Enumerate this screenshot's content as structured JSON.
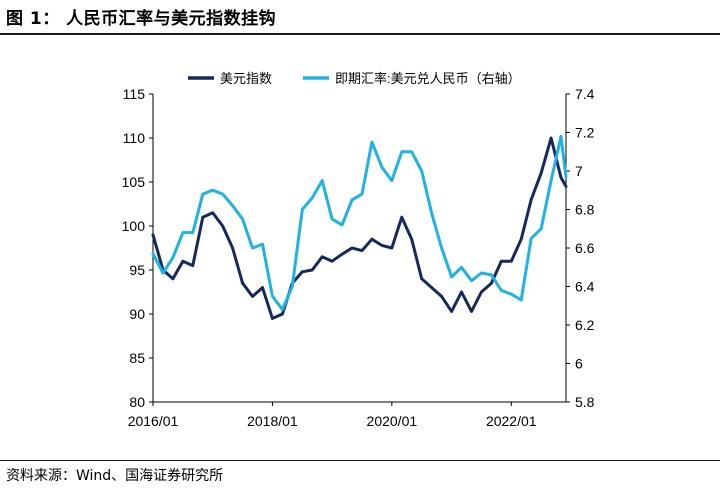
{
  "page": {
    "title": "图 1：  人民币汇率与美元指数挂钩",
    "source": "资料来源：Wind、国海证券研究所"
  },
  "colors": {
    "usd_index": "#14295f",
    "cny_rate": "#1fb2e6"
  },
  "chart_data": {
    "type": "line",
    "x_ticks": [
      "2016/01",
      "2018/01",
      "2020/01",
      "2022/01"
    ],
    "x_range": [
      "2016-01",
      "2022-12"
    ],
    "y_left": {
      "min": 80,
      "max": 115,
      "ticks": [
        "80",
        "85",
        "90",
        "95",
        "100",
        "105",
        "110",
        "115"
      ]
    },
    "y_right": {
      "min": 5.8,
      "max": 7.4,
      "ticks": [
        "5.8",
        "6",
        "6.2",
        "6.4",
        "6.6",
        "6.8",
        "7",
        "7.2",
        "7.4"
      ]
    },
    "legend_position": "top",
    "series": [
      {
        "name": "美元指数",
        "axis": "left",
        "color": "#14295f",
        "x": [
          "2016-01",
          "2016-03",
          "2016-05",
          "2016-07",
          "2016-09",
          "2016-11",
          "2017-01",
          "2017-03",
          "2017-05",
          "2017-07",
          "2017-09",
          "2017-11",
          "2018-01",
          "2018-03",
          "2018-05",
          "2018-07",
          "2018-09",
          "2018-11",
          "2019-01",
          "2019-03",
          "2019-05",
          "2019-07",
          "2019-09",
          "2019-11",
          "2020-01",
          "2020-03",
          "2020-05",
          "2020-07",
          "2020-09",
          "2020-11",
          "2021-01",
          "2021-03",
          "2021-05",
          "2021-07",
          "2021-09",
          "2021-11",
          "2022-01",
          "2022-03",
          "2022-05",
          "2022-07",
          "2022-09",
          "2022-11",
          "2022-12"
        ],
        "values": [
          99,
          95,
          94,
          96,
          95.5,
          101,
          101.5,
          100,
          97.5,
          93.5,
          92,
          93,
          89.5,
          90,
          93.5,
          94.8,
          95,
          96.5,
          96,
          96.8,
          97.5,
          97.2,
          98.5,
          97.8,
          97.5,
          101,
          98.5,
          94,
          93,
          92,
          90.3,
          92.5,
          90.3,
          92.5,
          93.5,
          96,
          96,
          98.5,
          103,
          106,
          110,
          105.5,
          104.5
        ]
      },
      {
        "name": "即期汇率:美元兑人民币（右轴）",
        "axis": "right",
        "color": "#1fb2e6",
        "x": [
          "2016-01",
          "2016-03",
          "2016-05",
          "2016-07",
          "2016-09",
          "2016-11",
          "2017-01",
          "2017-03",
          "2017-05",
          "2017-07",
          "2017-09",
          "2017-11",
          "2018-01",
          "2018-03",
          "2018-05",
          "2018-07",
          "2018-09",
          "2018-11",
          "2019-01",
          "2019-03",
          "2019-05",
          "2019-07",
          "2019-09",
          "2019-11",
          "2020-01",
          "2020-03",
          "2020-05",
          "2020-07",
          "2020-09",
          "2020-11",
          "2021-01",
          "2021-03",
          "2021-05",
          "2021-07",
          "2021-09",
          "2021-11",
          "2022-01",
          "2022-03",
          "2022-05",
          "2022-07",
          "2022-09",
          "2022-11",
          "2022-12"
        ],
        "values": [
          6.57,
          6.47,
          6.55,
          6.68,
          6.68,
          6.88,
          6.9,
          6.88,
          6.82,
          6.75,
          6.6,
          6.62,
          6.35,
          6.28,
          6.4,
          6.8,
          6.86,
          6.95,
          6.75,
          6.72,
          6.85,
          6.88,
          7.15,
          7.02,
          6.95,
          7.1,
          7.1,
          7.0,
          6.78,
          6.6,
          6.45,
          6.5,
          6.43,
          6.47,
          6.46,
          6.38,
          6.36,
          6.33,
          6.65,
          6.7,
          6.95,
          7.18,
          6.97
        ]
      }
    ]
  }
}
